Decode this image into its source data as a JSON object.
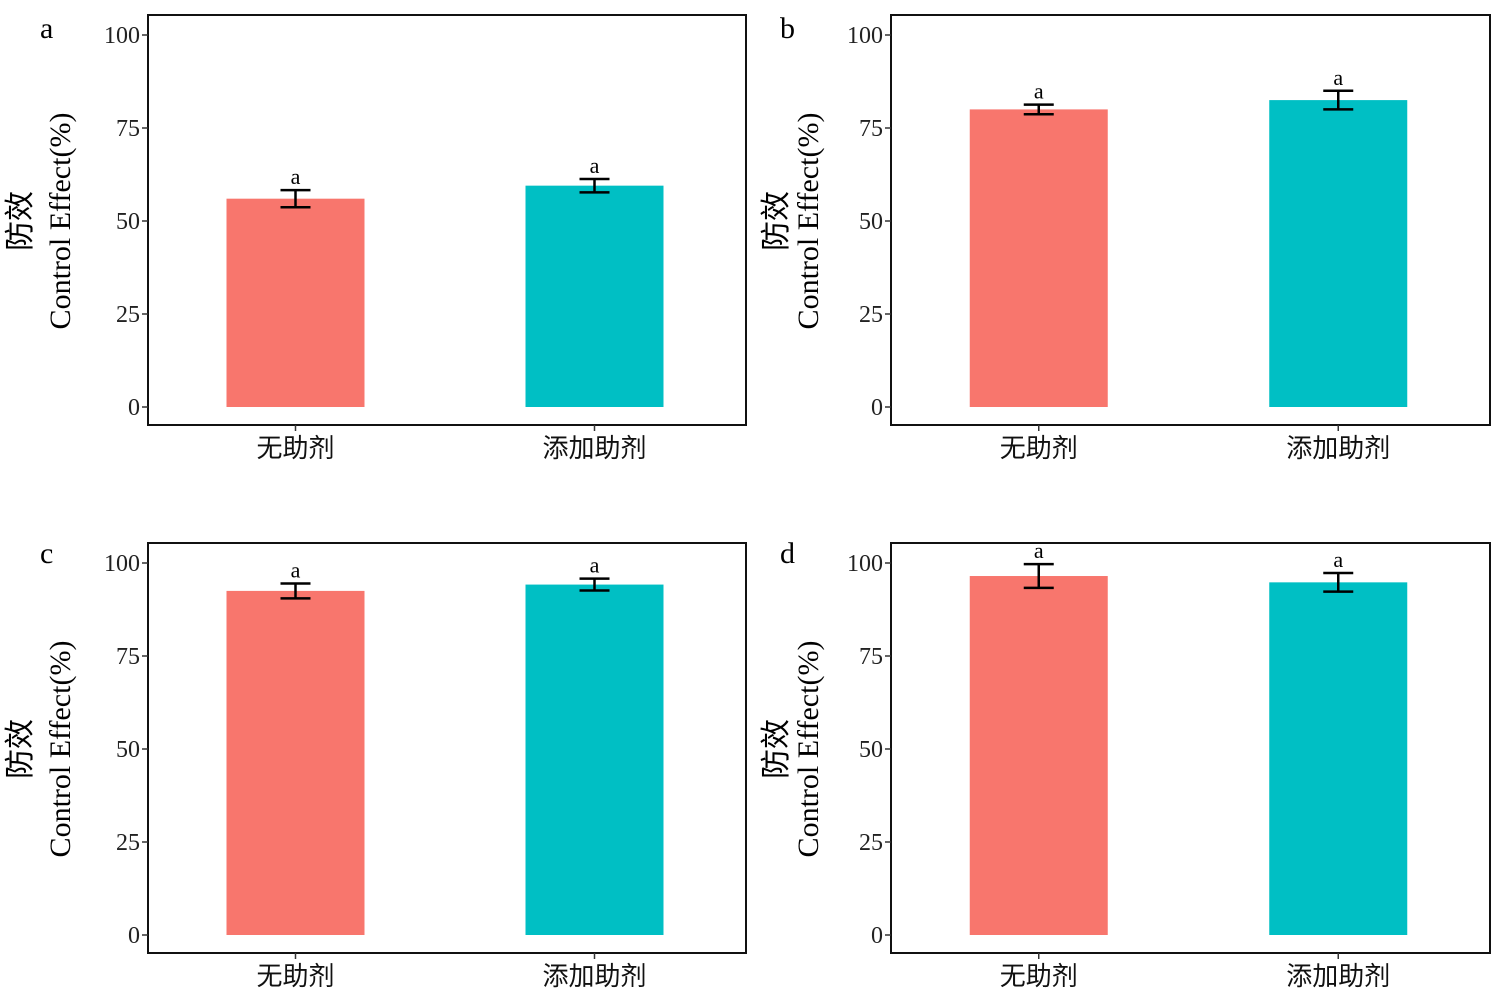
{
  "chart_data": [
    {
      "type": "bar",
      "panel": "a",
      "ylabel": [
        "防效",
        "Control Effect(%)"
      ],
      "ylim": [
        0,
        100
      ],
      "yticks": [
        0,
        25,
        50,
        75,
        100
      ],
      "categories": [
        "无助剂",
        "添加助剂"
      ],
      "values": [
        56,
        59.5
      ],
      "errors": [
        2.3,
        1.8
      ],
      "significance": [
        "a",
        "a"
      ],
      "colors": [
        "#F8766D",
        "#00BFC4"
      ],
      "grid": false
    },
    {
      "type": "bar",
      "panel": "b",
      "ylabel": [
        "防效",
        "Control Effect(%)"
      ],
      "ylim": [
        0,
        100
      ],
      "yticks": [
        0,
        25,
        50,
        75,
        100
      ],
      "categories": [
        "无助剂",
        "添加助剂"
      ],
      "values": [
        80,
        82.5
      ],
      "errors": [
        1.3,
        2.5
      ],
      "significance": [
        "a",
        "a"
      ],
      "colors": [
        "#F8766D",
        "#00BFC4"
      ],
      "grid": false
    },
    {
      "type": "bar",
      "panel": "c",
      "ylabel": [
        "防效",
        "Control Effect(%)"
      ],
      "ylim": [
        0,
        100
      ],
      "yticks": [
        0,
        25,
        50,
        75,
        100
      ],
      "categories": [
        "无助剂",
        "添加助剂"
      ],
      "values": [
        92.5,
        94.2
      ],
      "errors": [
        2.0,
        1.6
      ],
      "significance": [
        "a",
        "a"
      ],
      "colors": [
        "#F8766D",
        "#00BFC4"
      ],
      "grid": false
    },
    {
      "type": "bar",
      "panel": "d",
      "ylabel": [
        "防效",
        "Control Effect(%)"
      ],
      "ylim": [
        0,
        100
      ],
      "yticks": [
        0,
        25,
        50,
        75,
        100
      ],
      "categories": [
        "无助剂",
        "添加助剂"
      ],
      "values": [
        96.5,
        94.8
      ],
      "errors": [
        3.2,
        2.5
      ],
      "significance": [
        "a",
        "a"
      ],
      "colors": [
        "#F8766D",
        "#00BFC4"
      ],
      "grid": false
    }
  ]
}
